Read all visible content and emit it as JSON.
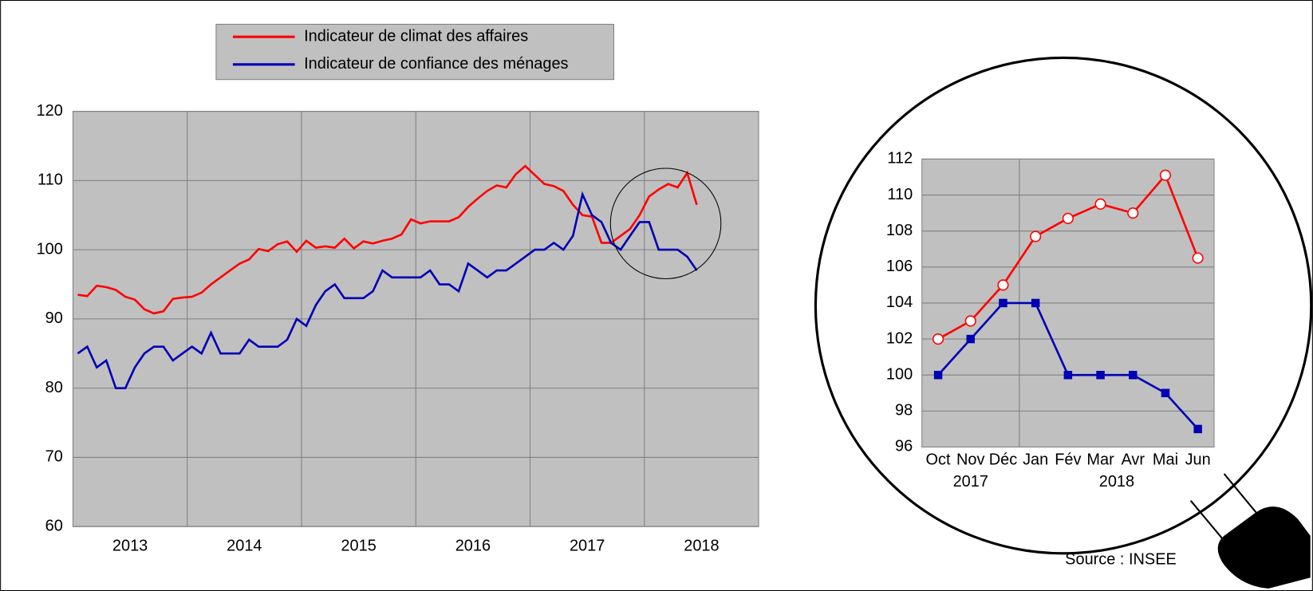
{
  "chart_data": [
    {
      "type": "line",
      "x": [
        "2013",
        "2013",
        "2013",
        "2013",
        "2013",
        "2013",
        "2013",
        "2013",
        "2013",
        "2013",
        "2013",
        "2013",
        "2014",
        "2014",
        "2014",
        "2014",
        "2014",
        "2014",
        "2014",
        "2014",
        "2014",
        "2014",
        "2014",
        "2014",
        "2015",
        "2015",
        "2015",
        "2015",
        "2015",
        "2015",
        "2015",
        "2015",
        "2015",
        "2015",
        "2015",
        "2015",
        "2016",
        "2016",
        "2016",
        "2016",
        "2016",
        "2016",
        "2016",
        "2016",
        "2016",
        "2016",
        "2016",
        "2016",
        "2017",
        "2017",
        "2017",
        "2017",
        "2017",
        "2017",
        "2017",
        "2017",
        "2017",
        "2017",
        "2017",
        "2017",
        "2018",
        "2018",
        "2018",
        "2018",
        "2018",
        "2018"
      ],
      "series": [
        {
          "name": "Indicateur de climat des affaires",
          "color": "#ff0000",
          "values": [
            93.5,
            93.3,
            94.8,
            94.6,
            94.2,
            93.2,
            92.8,
            91.4,
            90.8,
            91.1,
            92.9,
            93.1,
            93.2,
            93.8,
            95.0,
            96.0,
            97.0,
            98.0,
            98.6,
            100.1,
            99.8,
            100.8,
            101.2,
            99.7,
            101.3,
            100.3,
            100.5,
            100.3,
            101.6,
            100.2,
            101.2,
            100.9,
            101.3,
            101.6,
            102.2,
            104.4,
            103.8,
            104.1,
            104.1,
            104.1,
            104.7,
            106.2,
            107.4,
            108.5,
            109.3,
            109.0,
            110.9,
            112.1,
            110.8,
            109.5,
            109.2,
            108.5,
            106.5,
            105.0,
            104.8,
            101.0,
            101.0,
            102.0,
            103.0,
            105.0,
            107.7,
            108.7,
            109.5,
            109.0,
            111.1,
            106.5
          ]
        },
        {
          "name": "Indicateur de confiance des ménages",
          "color": "#0000b4",
          "values": [
            85,
            86,
            83,
            84,
            80,
            80,
            83,
            85,
            86,
            86,
            84,
            85,
            86,
            85,
            88,
            85,
            85,
            85,
            87,
            86,
            86,
            86,
            87,
            90,
            89,
            92,
            94,
            95,
            93,
            93,
            93,
            94,
            97,
            96,
            96,
            96,
            96,
            97,
            95,
            95,
            94,
            98,
            97,
            96,
            97,
            97,
            98,
            99,
            100,
            100,
            101,
            100,
            102,
            108,
            105,
            104,
            101,
            100,
            102,
            104,
            104,
            100,
            100,
            100,
            99,
            97
          ]
        }
      ],
      "ylim": [
        60,
        120
      ],
      "yticks": [
        60,
        70,
        80,
        90,
        100,
        110,
        120
      ],
      "grid": true
    },
    {
      "type": "line",
      "categories": [
        "Oct",
        "Nov",
        "Déc",
        "Jan",
        "Fév",
        "Mar",
        "Avr",
        "Mai",
        "Jun"
      ],
      "category_groups": [
        {
          "label": "2017",
          "span": 3
        },
        {
          "label": "2018",
          "span": 6
        }
      ],
      "series": [
        {
          "color": "#ff0000",
          "marker": "circle",
          "values": [
            102,
            103,
            105,
            107.7,
            108.7,
            109.5,
            109,
            111.1,
            106.5
          ]
        },
        {
          "color": "#0000b4",
          "marker": "square",
          "values": [
            100,
            102,
            104,
            104,
            100,
            100,
            100,
            99,
            97
          ]
        }
      ],
      "ylim": [
        96,
        112
      ],
      "yticks": [
        96,
        98,
        100,
        102,
        104,
        106,
        108,
        110,
        112
      ],
      "grid": true
    },
    {
      "source": "Source : INSEE"
    }
  ]
}
